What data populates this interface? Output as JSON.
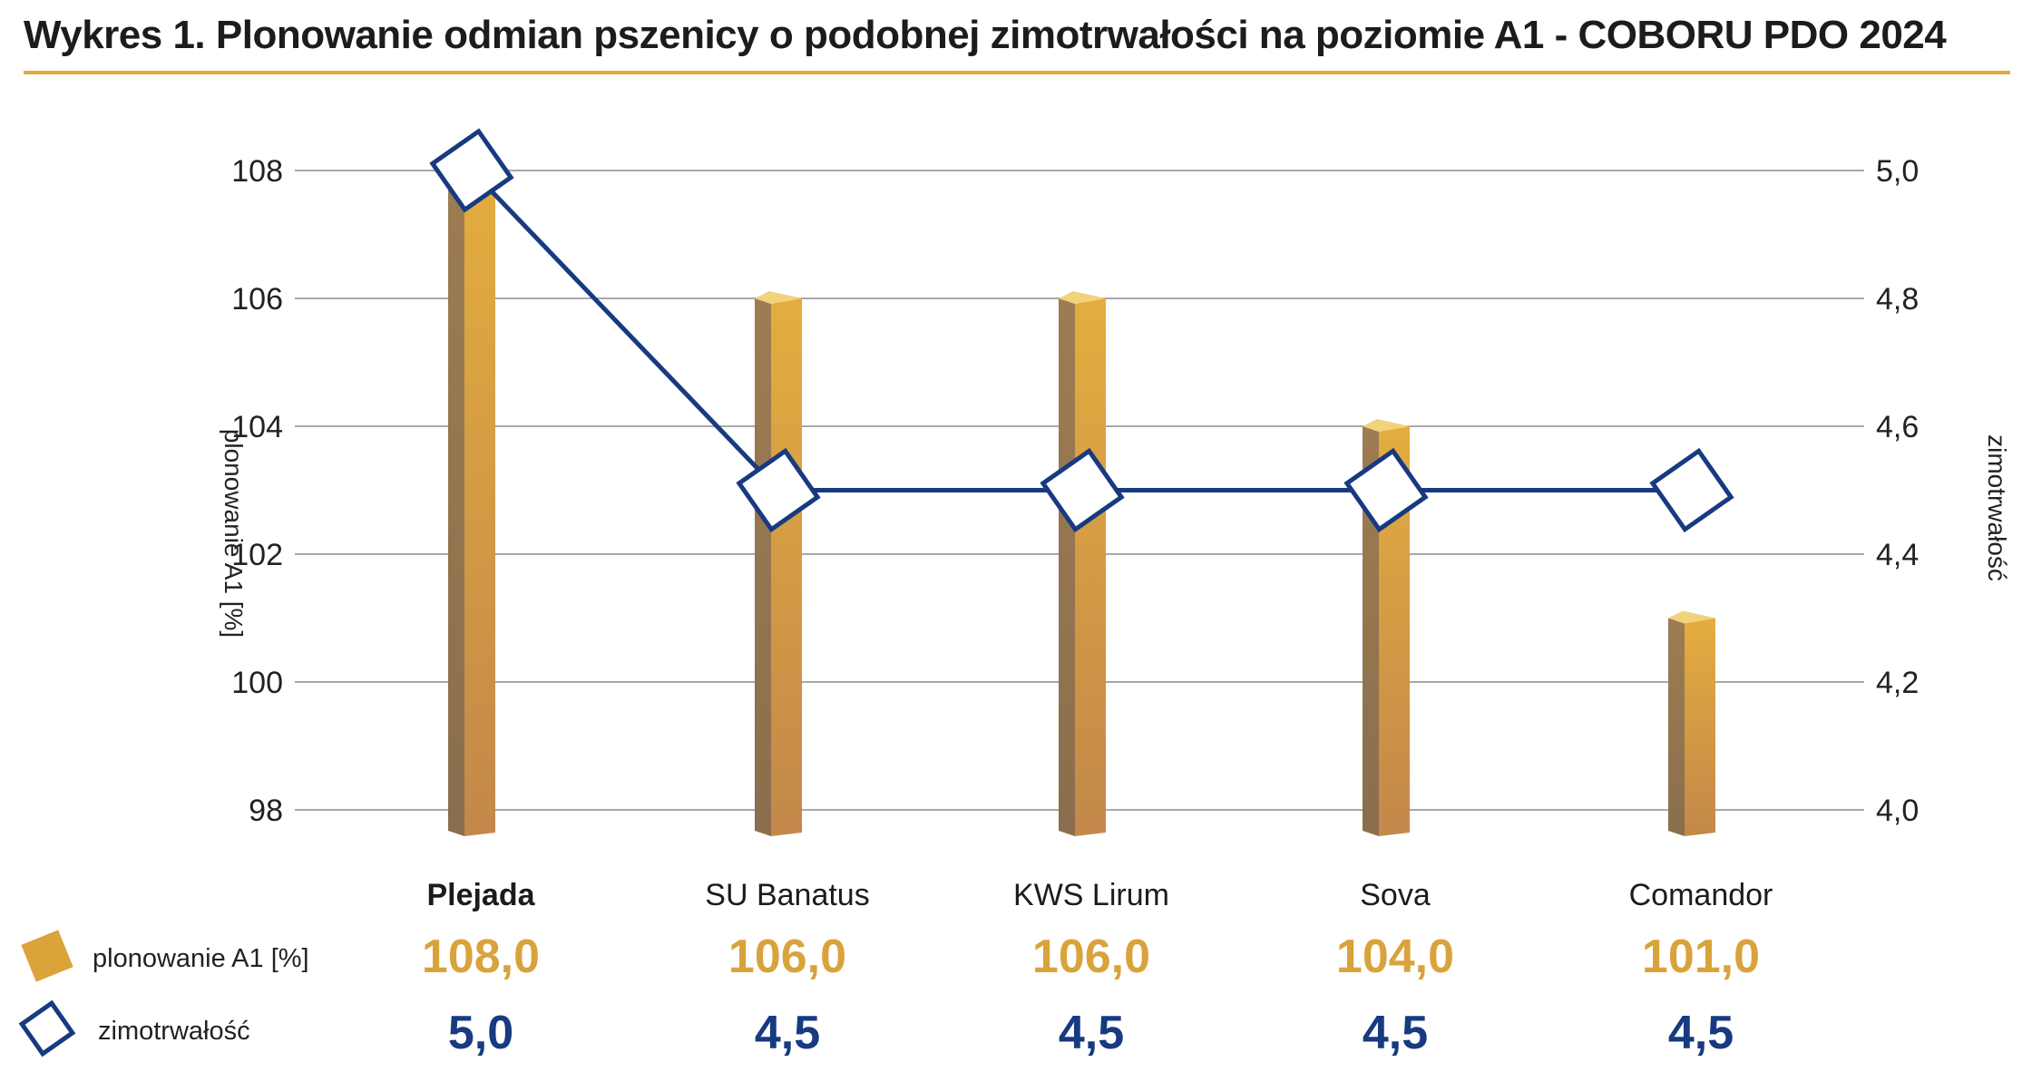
{
  "title": "Wykres 1. Plonowanie odmian pszenicy o podobnej zimotrwałości na poziomie A1 - COBORU PDO 2024",
  "chart_data": {
    "type": "bar",
    "categories": [
      "Plejada",
      "SU Banatus",
      "KWS Lirum",
      "Sova",
      "Comandor"
    ],
    "series": [
      {
        "name": "plonowanie A1 [%]",
        "type": "bar",
        "axis": "left",
        "values": [
          108.0,
          106.0,
          106.0,
          104.0,
          101.0
        ],
        "labels": [
          "108,0",
          "106,0",
          "106,0",
          "104,0",
          "101,0"
        ]
      },
      {
        "name": "zimotrwałość",
        "type": "line",
        "axis": "right",
        "values": [
          5.0,
          4.5,
          4.5,
          4.5,
          4.5
        ],
        "labels": [
          "5,0",
          "4,5",
          "4,5",
          "4,5",
          "4,5"
        ]
      }
    ],
    "yleft": {
      "label": "plonowanie A1 [%]",
      "min": 98,
      "max": 108,
      "ticks": [
        "98",
        "100",
        "102",
        "104",
        "106",
        "108"
      ]
    },
    "yright": {
      "label": "zimotrwałość",
      "min": 4.0,
      "max": 5.0,
      "ticks": [
        "4,0",
        "4,2",
        "4,4",
        "4,6",
        "4,8",
        "5,0"
      ]
    },
    "grid": true,
    "legend": "bottom-left",
    "highlight_category": "Plejada",
    "colors": {
      "bar_front": "#d9a33c",
      "bar_side": "#8f7350",
      "bar_top": "#f2d27a",
      "line": "#173a80",
      "bar_value_text": "#d9a33c",
      "line_value_text": "#173a80",
      "title_rule": "#e2a93b"
    }
  }
}
